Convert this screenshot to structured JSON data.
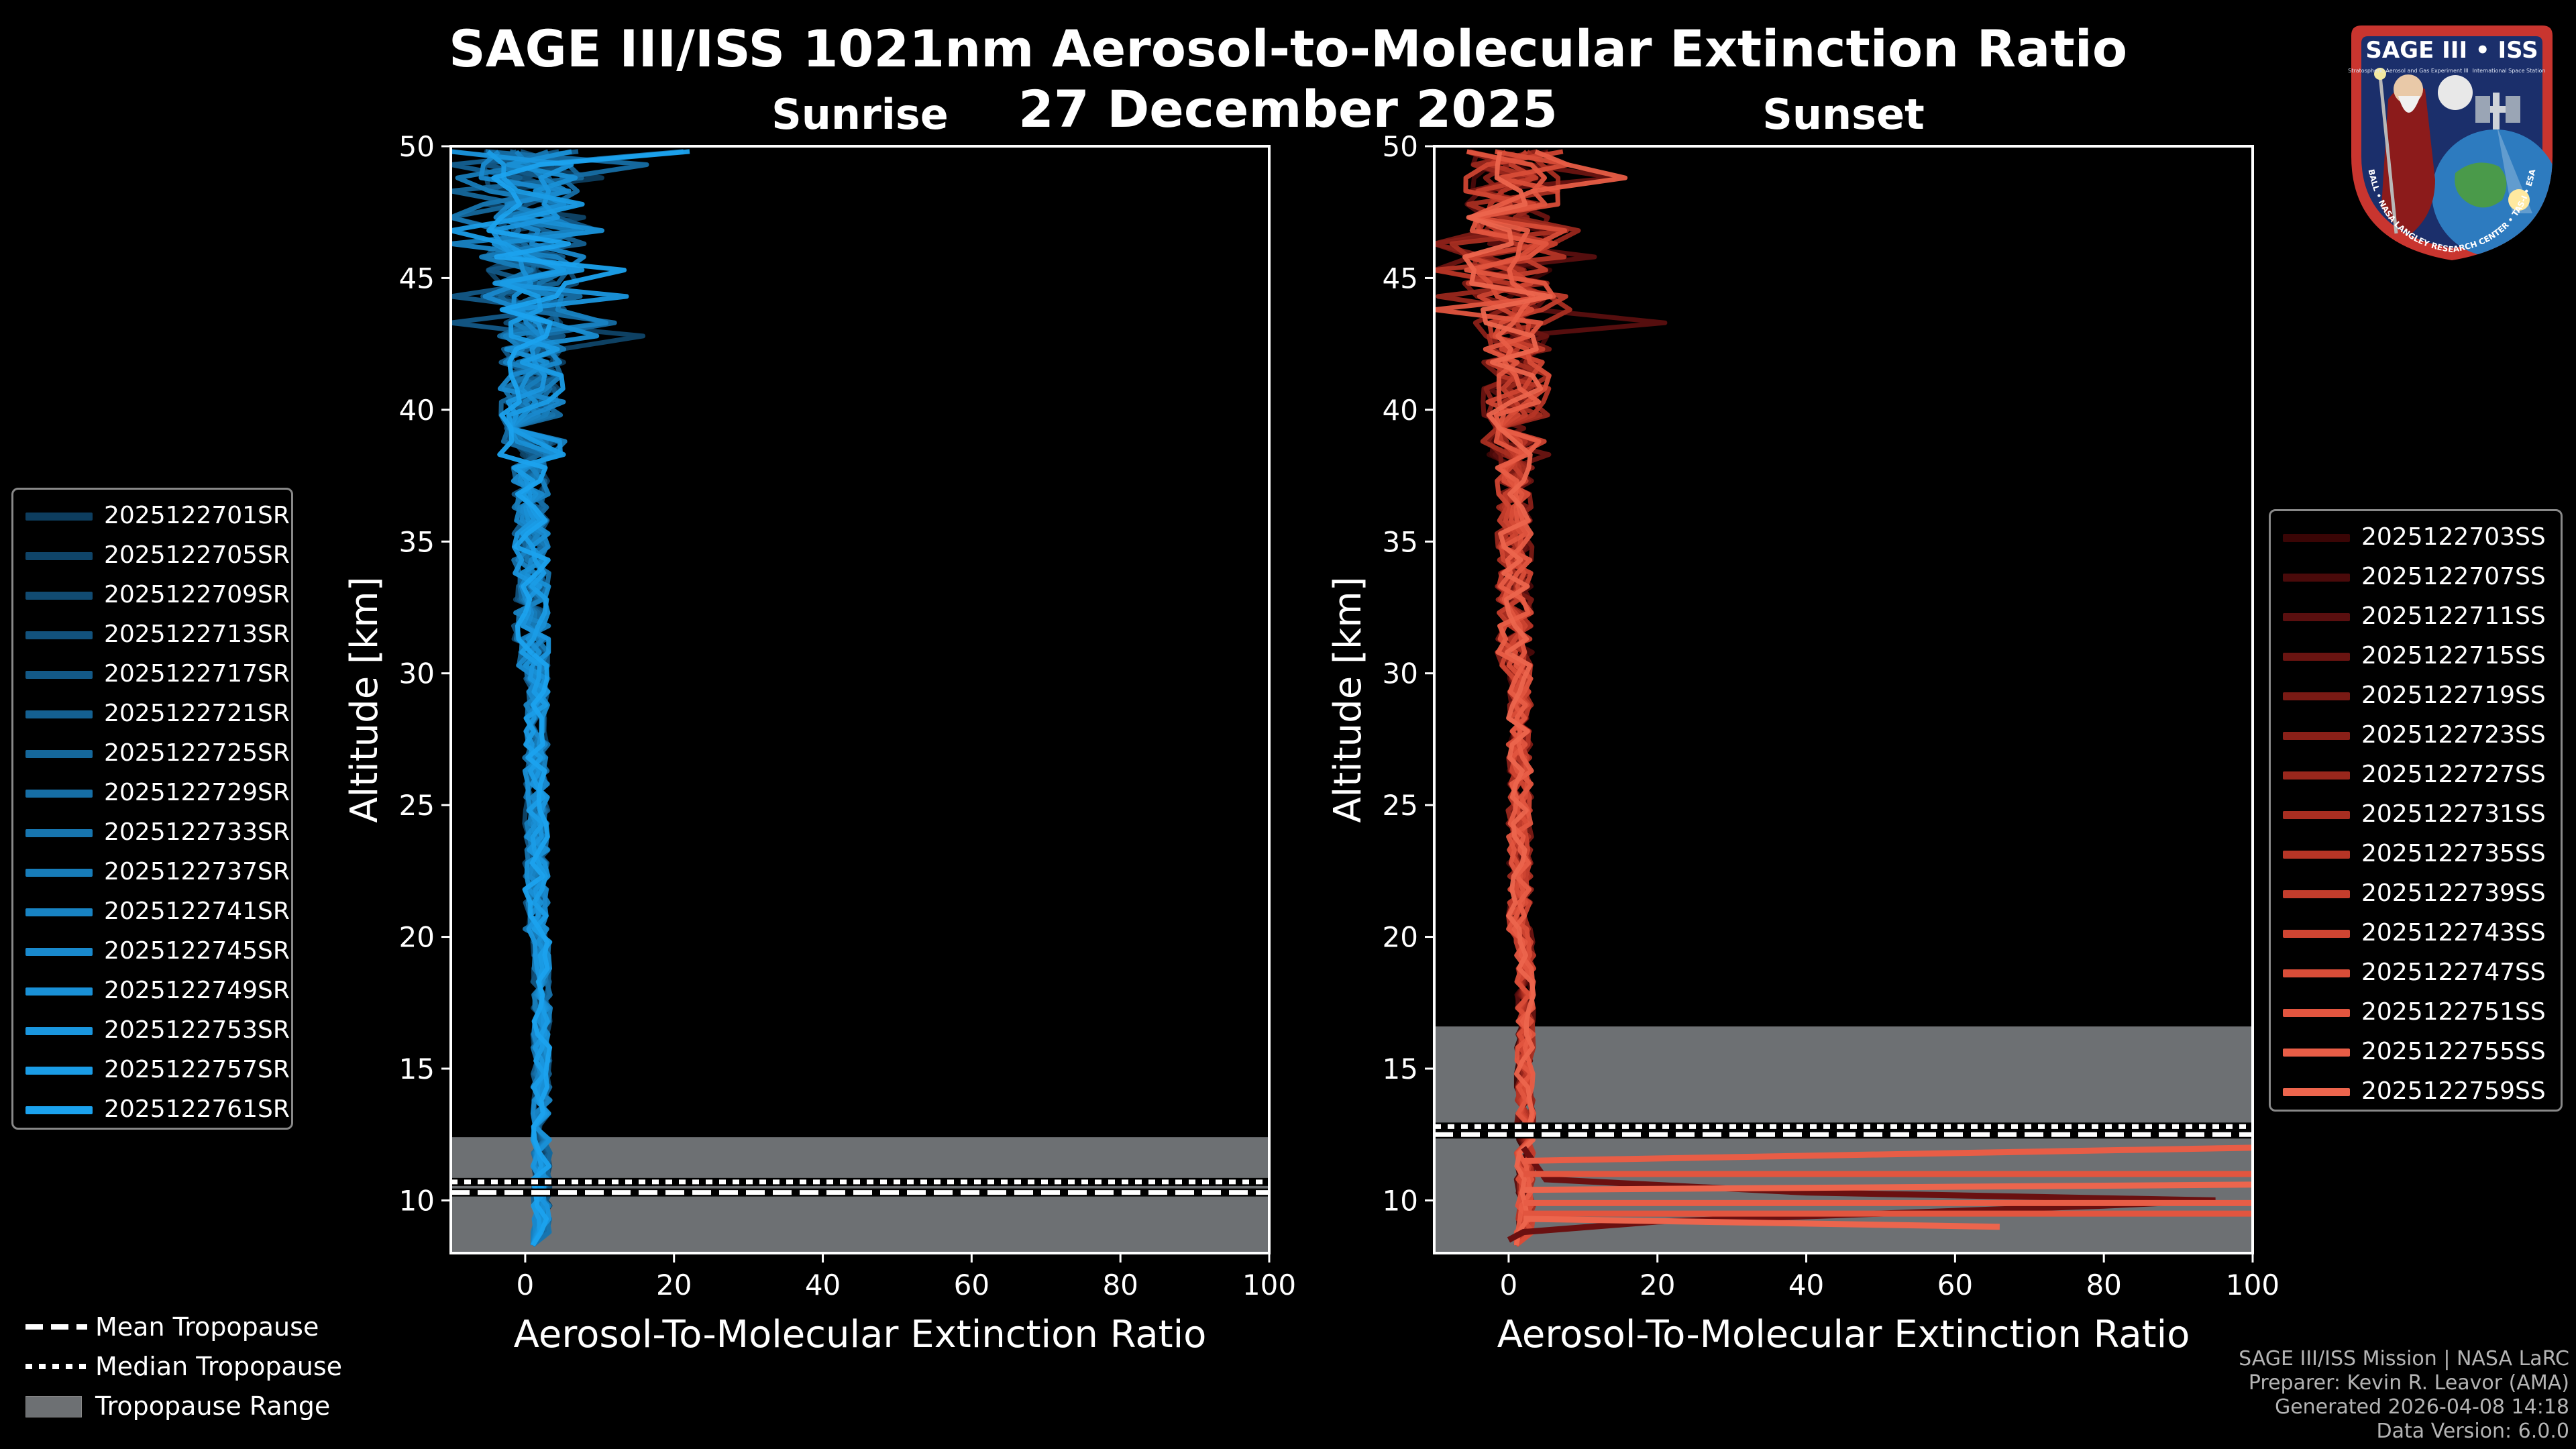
{
  "figure": {
    "title_line1": "SAGE III/ISS 1021nm Aerosol-to-Molecular Extinction Ratio",
    "title_line2": "27 December 2025"
  },
  "logo": {
    "name": "SAGE III • ISS",
    "ring_text": "BALL • NASA LANGLEY RESEARCH CENTER • TAS-I • ESA",
    "tagline_left": "Stratospheric Aerosol and Gas Experiment III",
    "tagline_right": "International Space Station"
  },
  "footer": {
    "mission": "SAGE III/ISS Mission | NASA LaRC",
    "preparer": "Preparer: Kevin R. Leavor (AMA)",
    "generated": "Generated 2026-04-08 14:18",
    "version": "Data Version: 6.0.0"
  },
  "tropopause_legend": {
    "mean": "Mean Tropopause",
    "median": "Median Tropopause",
    "range": "Tropopause Range"
  },
  "chart_data": [
    {
      "type": "line",
      "title": "Sunrise",
      "xlabel": "Aerosol-To-Molecular Extinction Ratio",
      "ylabel": "Altitude [km]",
      "xlim": [
        -10,
        100
      ],
      "ylim": [
        8,
        50
      ],
      "xticks": [
        0,
        20,
        40,
        60,
        80,
        100
      ],
      "yticks": [
        10,
        15,
        20,
        25,
        30,
        35,
        40,
        45,
        50
      ],
      "tick_labels_x": [
        "0",
        "20",
        "40",
        "60",
        "80",
        100
      ],
      "tick_labels_y": [
        "10",
        "15",
        "20",
        "25",
        "30",
        "35",
        "40",
        "45",
        "50"
      ],
      "tropopause": {
        "mean": 10.3,
        "median": 10.7,
        "range": [
          8,
          12.4
        ]
      },
      "series_names": [
        "2025122701SR",
        "2025122705SR",
        "2025122709SR",
        "2025122713SR",
        "2025122717SR",
        "2025122721SR",
        "2025122725SR",
        "2025122729SR",
        "2025122733SR",
        "2025122737SR",
        "2025122741SR",
        "2025122745SR",
        "2025122749SR",
        "2025122753SR",
        "2025122757SR",
        "2025122761SR"
      ],
      "series_colors": [
        "#0d3d5e",
        "#0f4468",
        "#114b72",
        "#12527d",
        "#135987",
        "#146091",
        "#15679b",
        "#166ea5",
        "#1775af",
        "#177cb9",
        "#1883c3",
        "#1989cd",
        "#1990d6",
        "#1a96de",
        "#1a9ce6",
        "#1ba2ee"
      ],
      "spike_profiles": [],
      "legend_position": "center-left"
    },
    {
      "type": "line",
      "title": "Sunset",
      "xlabel": "Aerosol-To-Molecular Extinction Ratio",
      "ylabel": "Altitude [km]",
      "xlim": [
        -10,
        100
      ],
      "ylim": [
        8,
        50
      ],
      "xticks": [
        0,
        20,
        40,
        60,
        80,
        100
      ],
      "yticks": [
        10,
        15,
        20,
        25,
        30,
        35,
        40,
        45,
        50
      ],
      "tick_labels_x": [
        "0",
        "20",
        "40",
        "60",
        "80",
        100
      ],
      "tick_labels_y": [
        "10",
        "15",
        "20",
        "25",
        "30",
        "35",
        "40",
        "45",
        "50"
      ],
      "tropopause": {
        "mean": 12.5,
        "median": 12.8,
        "range": [
          8,
          16.6
        ]
      },
      "series_names": [
        "2025122703SS",
        "2025122707SS",
        "2025122711SS",
        "2025122715SS",
        "2025122719SS",
        "2025122723SS",
        "2025122727SS",
        "2025122731SS",
        "2025122735SS",
        "2025122739SS",
        "2025122743SS",
        "2025122747SS",
        "2025122751SS",
        "2025122755SS",
        "2025122759SS"
      ],
      "series_colors": [
        "#3a0505",
        "#4a0a0a",
        "#5a0f0f",
        "#6a1411",
        "#7a1a14",
        "#8a2018",
        "#99271c",
        "#a82e21",
        "#b63526",
        "#c33d2c",
        "#cf4532",
        "#d94d38",
        "#e2553f",
        "#e85d46",
        "#ec654d"
      ],
      "spike_profiles": [
        {
          "points": [
            [
              0,
              8.5
            ],
            [
              2,
              8.8
            ],
            [
              20,
              9.2
            ],
            [
              80,
              9.8
            ],
            [
              95,
              10.0
            ],
            [
              40,
              10.3
            ],
            [
              5,
              10.8
            ],
            [
              2,
              12
            ]
          ]
        },
        {
          "points": [
            [
              2,
              11.5
            ],
            [
              100,
              12.0
            ]
          ]
        },
        {
          "points": [
            [
              100,
              11.0
            ],
            [
              2,
              11.0
            ]
          ]
        },
        {
          "points": [
            [
              2,
              10.4
            ],
            [
              100,
              10.6
            ]
          ]
        },
        {
          "points": [
            [
              100,
              9.9
            ],
            [
              2,
              9.9
            ]
          ]
        },
        {
          "points": [
            [
              2,
              9.5
            ],
            [
              100,
              9.5
            ]
          ]
        },
        {
          "points": [
            [
              66,
              9.0
            ],
            [
              2,
              9.3
            ]
          ]
        }
      ],
      "legend_position": "center-right"
    }
  ]
}
